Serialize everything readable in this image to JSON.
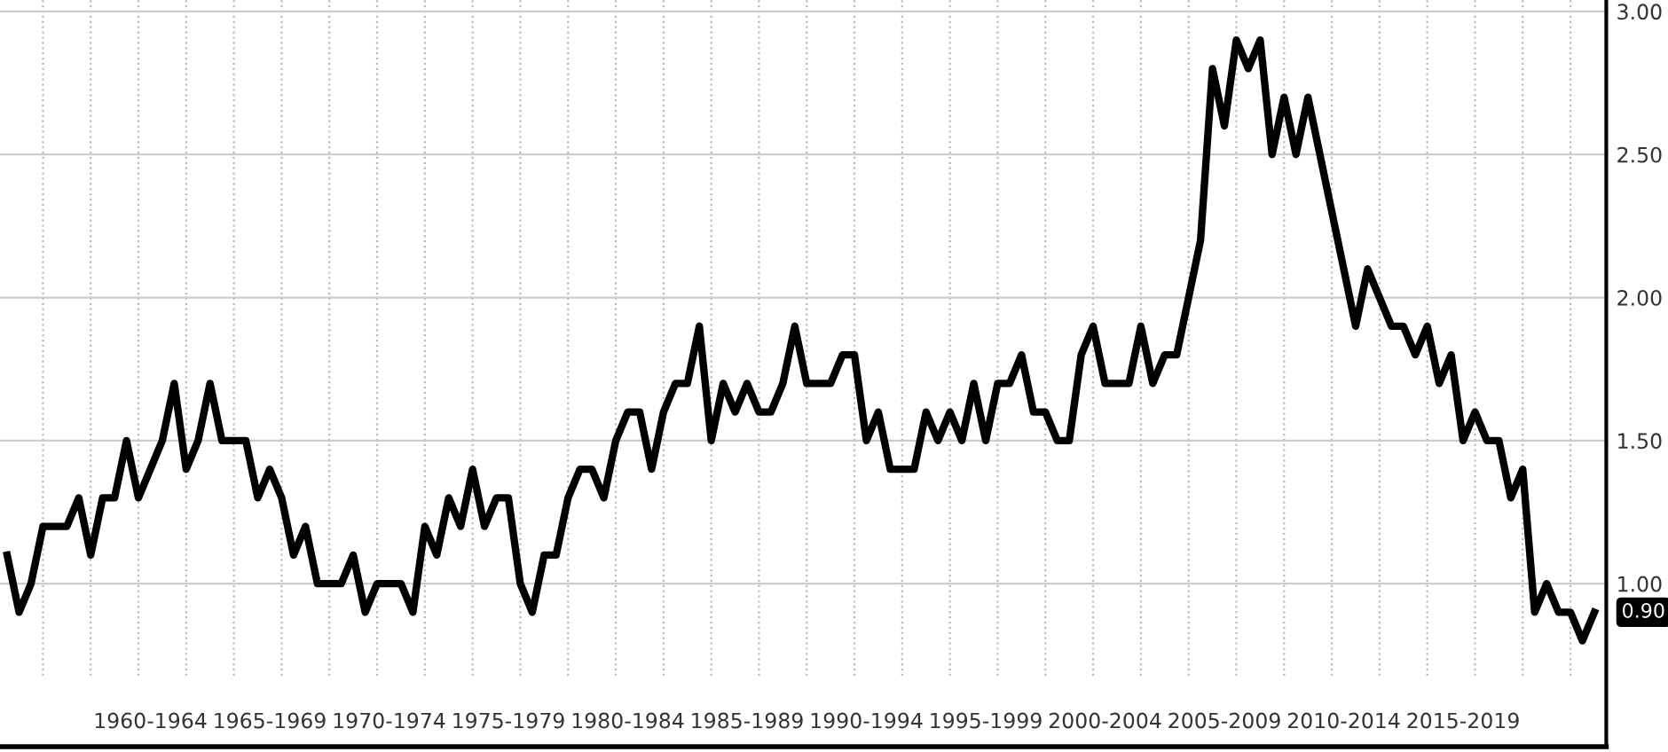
{
  "chart_data": {
    "type": "line",
    "categories": [
      null,
      null,
      null,
      null,
      null,
      null,
      null,
      null,
      null,
      null,
      null,
      null,
      "1960-1964",
      null,
      null,
      null,
      null,
      null,
      null,
      null,
      null,
      null,
      "1965-1969",
      null,
      null,
      null,
      null,
      null,
      null,
      null,
      null,
      null,
      "1970-1974",
      null,
      null,
      null,
      null,
      null,
      null,
      null,
      null,
      null,
      "1975-1979",
      null,
      null,
      null,
      null,
      null,
      null,
      null,
      null,
      null,
      "1980-1984",
      null,
      null,
      null,
      null,
      null,
      null,
      null,
      null,
      null,
      "1985-1989",
      null,
      null,
      null,
      null,
      null,
      null,
      null,
      null,
      null,
      "1990-1994",
      null,
      null,
      null,
      null,
      null,
      null,
      null,
      null,
      null,
      "1995-1999",
      null,
      null,
      null,
      null,
      null,
      null,
      null,
      null,
      null,
      "2000-2004",
      null,
      null,
      null,
      null,
      null,
      null,
      null,
      null,
      null,
      "2005-2009",
      null,
      null,
      null,
      null,
      null,
      null,
      null,
      null,
      null,
      "2010-2014",
      null,
      null,
      null,
      null,
      null,
      null,
      null,
      null,
      null,
      "2015-2019",
      null,
      null,
      null,
      null,
      null,
      null,
      null,
      null,
      null,
      null,
      null
    ],
    "series": [
      {
        "color": "#000000",
        "values": [
          1.1,
          0.9,
          1.0,
          1.2,
          1.2,
          1.2,
          1.3,
          1.1,
          1.3,
          1.3,
          1.5,
          1.3,
          1.4,
          1.5,
          1.7,
          1.4,
          1.5,
          1.7,
          1.5,
          1.5,
          1.5,
          1.3,
          1.4,
          1.3,
          1.1,
          1.2,
          1.0,
          1.0,
          1.0,
          1.1,
          0.9,
          1.0,
          1.0,
          1.0,
          0.9,
          1.2,
          1.1,
          1.3,
          1.2,
          1.4,
          1.2,
          1.3,
          1.3,
          1.0,
          0.9,
          1.1,
          1.1,
          1.3,
          1.4,
          1.4,
          1.3,
          1.5,
          1.6,
          1.6,
          1.4,
          1.6,
          1.7,
          1.7,
          1.9,
          1.5,
          1.7,
          1.6,
          1.7,
          1.6,
          1.6,
          1.7,
          1.9,
          1.7,
          1.7,
          1.7,
          1.8,
          1.8,
          1.5,
          1.6,
          1.4,
          1.4,
          1.4,
          1.6,
          1.5,
          1.6,
          1.5,
          1.7,
          1.5,
          1.7,
          1.7,
          1.8,
          1.6,
          1.6,
          1.5,
          1.5,
          1.8,
          1.9,
          1.7,
          1.7,
          1.7,
          1.9,
          1.7,
          1.8,
          1.8,
          2.0,
          2.2,
          2.8,
          2.6,
          2.9,
          2.8,
          2.9,
          2.5,
          2.7,
          2.5,
          2.7,
          2.5,
          2.3,
          2.1,
          1.9,
          2.1,
          2.0,
          1.9,
          1.9,
          1.8,
          1.9,
          1.7,
          1.8,
          1.5,
          1.6,
          1.5,
          1.5,
          1.3,
          1.4,
          0.9,
          1.0,
          0.9,
          0.9,
          0.8,
          0.9
        ]
      }
    ],
    "ylim": [
      0.43,
      3.04
    ],
    "yticks": [
      {
        "value": 1.0,
        "label": "1.00"
      },
      {
        "value": 1.5,
        "label": "1.50"
      },
      {
        "value": 2.0,
        "label": "2.00"
      },
      {
        "value": 2.5,
        "label": "2.50"
      },
      {
        "value": 3.0,
        "label": "3.00"
      }
    ],
    "annotations": [
      "0.90"
    ],
    "grid": true,
    "line_style": "solid"
  }
}
